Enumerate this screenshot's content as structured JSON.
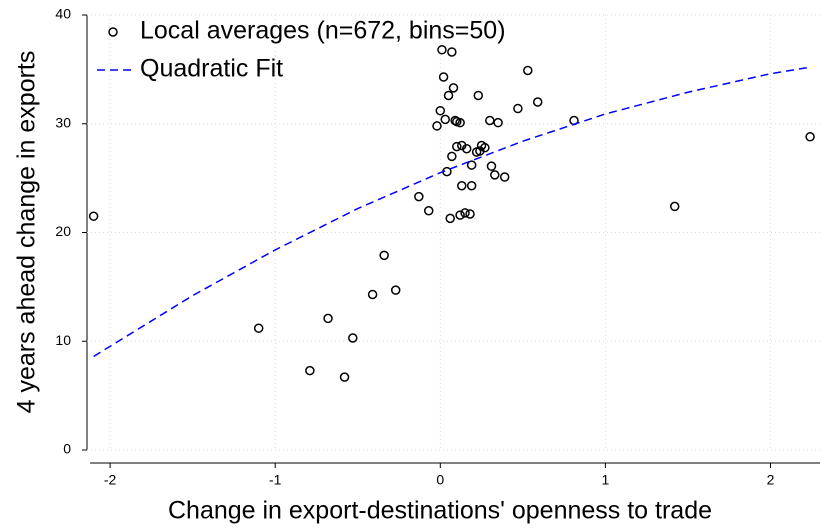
{
  "chart_data": {
    "type": "scatter",
    "x_label": "Change in export-destinations' openness to trade",
    "y_label": "4 years ahead change in exports",
    "xlim": [
      -2.14,
      2.3
    ],
    "ylim": [
      0,
      40
    ],
    "xticks": [
      -2,
      -1,
      0,
      1,
      2
    ],
    "yticks": [
      0,
      10,
      20,
      30,
      40
    ],
    "grid": true,
    "legend": "top-left",
    "series": [
      {
        "name": "Local averages (n=672, bins=50)",
        "color": "#000000",
        "mode": "markers",
        "x": [
          -2.1,
          -1.1,
          -0.68,
          -0.79,
          -0.58,
          -0.53,
          -0.41,
          -0.34,
          -0.27,
          -0.13,
          -0.07,
          -0.02,
          0.0,
          0.01,
          0.02,
          0.03,
          0.04,
          0.05,
          0.07,
          0.07,
          0.08,
          0.06,
          0.09,
          0.1,
          0.12,
          0.1,
          0.13,
          0.13,
          0.12,
          0.15,
          0.18,
          0.16,
          0.19,
          0.19,
          0.22,
          0.23,
          0.24,
          0.25,
          0.27,
          0.3,
          0.31,
          0.33,
          0.35,
          0.39,
          0.47,
          0.53,
          0.59,
          0.81,
          1.42,
          2.24
        ],
        "values": [
          21.5,
          11.2,
          12.1,
          7.3,
          6.7,
          10.3,
          14.3,
          17.9,
          14.7,
          23.3,
          22.0,
          29.8,
          31.2,
          36.8,
          34.3,
          30.4,
          25.6,
          32.6,
          27.0,
          36.6,
          33.3,
          21.3,
          30.3,
          30.2,
          30.1,
          27.9,
          28.0,
          24.3,
          21.6,
          21.8,
          21.7,
          27.7,
          26.2,
          24.3,
          27.4,
          32.6,
          27.5,
          28.0,
          27.8,
          30.3,
          26.1,
          25.3,
          30.1,
          25.1,
          31.4,
          34.9,
          32.0,
          30.3,
          22.4,
          28.8
        ]
      },
      {
        "name": "Quadratic Fit",
        "color": "#0000ff",
        "mode": "dashed-line",
        "x": [
          -2.1,
          -1.5,
          -1,
          -0.5,
          0,
          0.5,
          1,
          1.5,
          2,
          2.24
        ],
        "values": [
          8.6,
          14.2,
          18.4,
          22.2,
          25.5,
          28.4,
          30.9,
          32.9,
          34.6,
          35.2
        ]
      }
    ]
  }
}
